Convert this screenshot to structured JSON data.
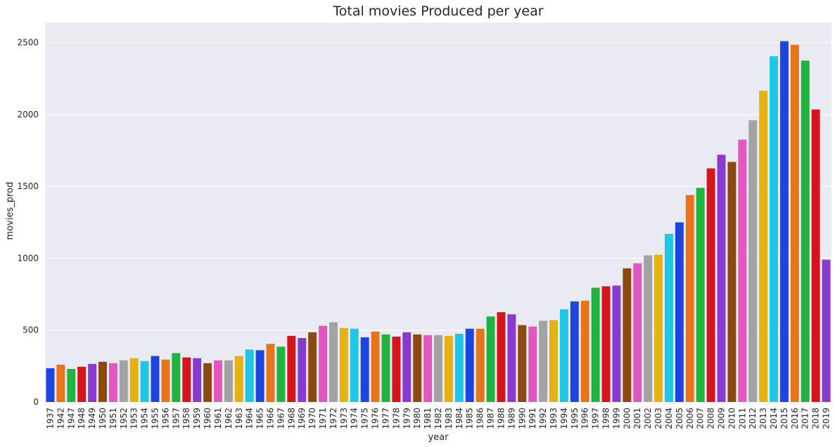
{
  "chart_data": {
    "type": "bar",
    "title": "Total movies Produced per year",
    "xlabel": "year",
    "ylabel": "movies_prod",
    "ylim": [
      0,
      2640
    ],
    "yticks": [
      0,
      500,
      1000,
      1500,
      2000,
      2500
    ],
    "grid": true,
    "palette": [
      "#1f45e0",
      "#e8751a",
      "#21b33f",
      "#d6141c",
      "#8a3bcf",
      "#8c4a10",
      "#e357c0",
      "#a3a3a3",
      "#e6b212",
      "#1fc6e6"
    ],
    "background": "#eaeaf2",
    "categories": [
      "1937",
      "1942",
      "1947",
      "1948",
      "1949",
      "1950",
      "1951",
      "1952",
      "1953",
      "1954",
      "1955",
      "1956",
      "1957",
      "1958",
      "1959",
      "1960",
      "1961",
      "1962",
      "1963",
      "1964",
      "1965",
      "1966",
      "1967",
      "1968",
      "1969",
      "1970",
      "1971",
      "1972",
      "1973",
      "1974",
      "1975",
      "1976",
      "1977",
      "1978",
      "1979",
      "1980",
      "1981",
      "1982",
      "1983",
      "1984",
      "1985",
      "1986",
      "1987",
      "1988",
      "1989",
      "1990",
      "1991",
      "1992",
      "1993",
      "1994",
      "1995",
      "1996",
      "1997",
      "1998",
      "1999",
      "2000",
      "2001",
      "2002",
      "2003",
      "2004",
      "2005",
      "2006",
      "2007",
      "2008",
      "2009",
      "2010",
      "2011",
      "2012",
      "2013",
      "2014",
      "2015",
      "2016",
      "2017",
      "2018",
      "2019"
    ],
    "values": [
      235,
      260,
      230,
      245,
      265,
      280,
      270,
      290,
      305,
      285,
      320,
      295,
      340,
      310,
      305,
      270,
      290,
      290,
      320,
      365,
      360,
      405,
      385,
      460,
      445,
      485,
      530,
      555,
      515,
      510,
      450,
      490,
      470,
      455,
      485,
      470,
      465,
      465,
      460,
      475,
      510,
      510,
      595,
      625,
      610,
      535,
      525,
      565,
      570,
      645,
      700,
      705,
      795,
      805,
      810,
      930,
      965,
      1020,
      1025,
      1170,
      1250,
      1440,
      1490,
      1625,
      1720,
      1670,
      1825,
      1960,
      2165,
      2405,
      2510,
      2485,
      2375,
      2035,
      990
    ]
  }
}
